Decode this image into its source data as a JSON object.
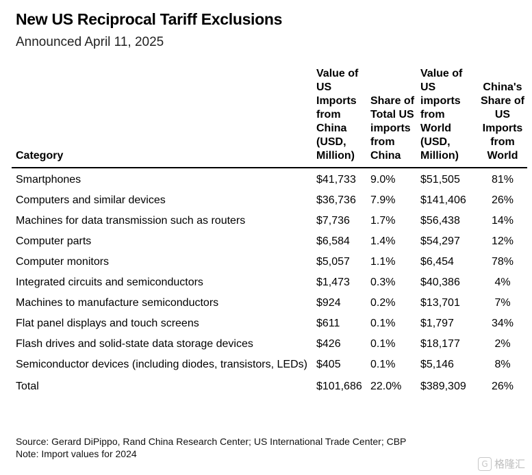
{
  "title": "New US Reciprocal Tariff Exclusions",
  "subtitle": "Announced April 11, 2025",
  "chart_data": {
    "type": "table",
    "columns": [
      "Category",
      "Value of US Imports from China (USD, Million)",
      "Share of Total US imports from China",
      "Value of US imports from World (USD, Million)",
      "China's Share of US Imports from World"
    ],
    "rows": [
      [
        "Smartphones",
        "$41,733",
        "9.0%",
        "$51,505",
        "81%"
      ],
      [
        "Computers and similar devices",
        "$36,736",
        "7.9%",
        "$141,406",
        "26%"
      ],
      [
        "Machines for data transmission such as routers",
        "$7,736",
        "1.7%",
        "$56,438",
        "14%"
      ],
      [
        "Computer parts",
        "$6,584",
        "1.4%",
        "$54,297",
        "12%"
      ],
      [
        "Computer monitors",
        "$5,057",
        "1.1%",
        "$6,454",
        "78%"
      ],
      [
        "Integrated circuits and semiconductors",
        "$1,473",
        "0.3%",
        "$40,386",
        "4%"
      ],
      [
        "Machines to manufacture semiconductors",
        "$924",
        "0.2%",
        "$13,701",
        "7%"
      ],
      [
        "Flat panel displays and touch screens",
        "$611",
        "0.1%",
        "$1,797",
        "34%"
      ],
      [
        "Flash drives and solid-state data storage devices",
        "$426",
        "0.1%",
        "$18,177",
        "2%"
      ],
      [
        "Semiconductor devices (including diodes, transistors, LEDs)",
        "$405",
        "0.1%",
        "$5,146",
        "8%"
      ]
    ],
    "total": [
      "Total",
      "$101,686",
      "22.0%",
      "$389,309",
      "26%"
    ]
  },
  "footer": {
    "source": "Source: Gerard DiPippo, Rand China Research Center; US International Trade Center; CBP",
    "note": "Note: Import values for 2024"
  },
  "watermark": {
    "icon": "g-logo-icon",
    "text": "格隆汇"
  }
}
